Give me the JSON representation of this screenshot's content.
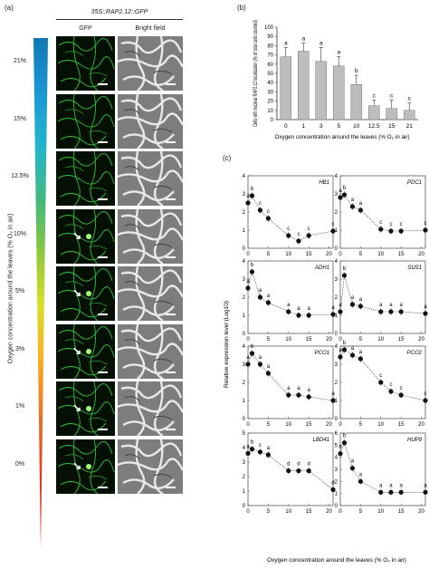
{
  "panels": {
    "a": "(a)",
    "b": "(b)",
    "c": "(c)"
  },
  "panel_a": {
    "construct": "35S::RAP2.12::GFP",
    "col_gfp": "GFP",
    "col_bf": "Bright field",
    "y_title": "Oxygen concentration around the leaves (% O₂ in air)",
    "levels": [
      "21%",
      "15%",
      "12.5%",
      "10%",
      "5%",
      "3%",
      "1%",
      "0%"
    ],
    "arrows_shown": [
      false,
      false,
      false,
      true,
      true,
      true,
      true,
      true
    ]
  },
  "chart_data": [
    {
      "type": "bar",
      "categories": [
        "0",
        "1",
        "3",
        "5",
        "10",
        "12.5",
        "15",
        "21"
      ],
      "values": [
        68,
        74,
        63,
        58,
        38,
        15,
        12,
        10
      ],
      "errors": [
        10,
        9,
        15,
        10,
        10,
        6,
        9,
        8
      ],
      "letters": [
        "a",
        "a",
        "a",
        "a",
        "b",
        "c",
        "c",
        "c"
      ],
      "ylim": [
        0,
        100
      ],
      "yticks": [
        "0",
        "10",
        "20",
        "30",
        "40",
        "50",
        "60",
        "70",
        "80",
        "90",
        "100"
      ],
      "ylabel": "Cells with nuclear RAP2.12 localization (% of total cells counted)",
      "xlabel": "Oxygen concentration around the leaves (% O₂ in air)",
      "bar_color": "#bdbdbd"
    },
    {
      "type": "line",
      "shared_xlabel": "Oxygen concentration around the leaves (% O₂ in air)",
      "shared_ylabel": "Relative expression level (Log10)",
      "xticks": [
        "0",
        "5",
        "10",
        "15",
        "20"
      ],
      "xlim": [
        0,
        21
      ],
      "x": [
        0,
        1,
        3,
        5,
        10,
        12.5,
        15,
        21
      ],
      "subplots": [
        {
          "gene": "HB1",
          "ylim": [
            0,
            4
          ],
          "yticks": [
            "0",
            "1",
            "2",
            "3",
            "4"
          ],
          "y": [
            2.5,
            2.9,
            2.1,
            1.65,
            0.7,
            0.4,
            0.7,
            0.95
          ],
          "letters": [
            "a",
            "b",
            "c",
            "c",
            "c",
            "c",
            "c",
            "c"
          ]
        },
        {
          "gene": "PDC1",
          "ylim": [
            0,
            4
          ],
          "yticks": [
            "0",
            "1",
            "2",
            "3",
            "4"
          ],
          "y": [
            2.8,
            2.95,
            2.3,
            2.1,
            1.05,
            0.95,
            0.95,
            1.0
          ],
          "letters": [
            "a",
            "b",
            "a",
            "a",
            "c",
            "c",
            "c",
            "c"
          ]
        },
        {
          "gene": "ADH1",
          "ylim": [
            0,
            4
          ],
          "yticks": [
            "0",
            "1",
            "2",
            "3",
            "4"
          ],
          "y": [
            2.5,
            3.4,
            2.0,
            1.7,
            1.2,
            1.0,
            1.0,
            1.05
          ],
          "letters": [
            "a",
            "b",
            "a",
            "a",
            "a",
            "a",
            "a",
            "a"
          ]
        },
        {
          "gene": "SUS1",
          "ylim": [
            0,
            4
          ],
          "yticks": [
            "0",
            "1",
            "2",
            "3",
            "4"
          ],
          "y": [
            1.2,
            3.2,
            1.6,
            1.5,
            1.2,
            1.2,
            1.2,
            1.1
          ],
          "letters": [
            "a",
            "b",
            "a",
            "a",
            "a",
            "a",
            "a",
            "a"
          ]
        },
        {
          "gene": "PCO1",
          "ylim": [
            0,
            4
          ],
          "yticks": [
            "0",
            "1",
            "2",
            "3",
            "4"
          ],
          "y": [
            3.0,
            3.6,
            3.0,
            2.5,
            1.3,
            1.3,
            1.2,
            1.0
          ],
          "letters": [
            "a",
            "b",
            "a",
            "a",
            "a",
            "a",
            "a",
            "a"
          ]
        },
        {
          "gene": "PCO2",
          "ylim": [
            0,
            4
          ],
          "yticks": [
            "0",
            "1",
            "2",
            "3",
            "4"
          ],
          "y": [
            3.4,
            3.8,
            3.5,
            3.3,
            2.0,
            1.5,
            1.3,
            1.0
          ],
          "letters": [
            "a",
            "b",
            "a",
            "a",
            "c",
            "c",
            "c",
            "c"
          ]
        },
        {
          "gene": "LBD41",
          "ylim": [
            0,
            5
          ],
          "yticks": [
            "0",
            "1",
            "2",
            "3",
            "4",
            "5"
          ],
          "y": [
            3.6,
            3.9,
            3.7,
            3.5,
            2.4,
            2.4,
            2.4,
            1.1
          ],
          "letters": [
            "a",
            "b",
            "c",
            "a",
            "d",
            "d",
            "d",
            "d"
          ]
        },
        {
          "gene": "HUP9",
          "ylim": [
            0,
            6
          ],
          "yticks": [
            "0",
            "1",
            "2",
            "3",
            "4",
            "5",
            "6"
          ],
          "y": [
            4.3,
            5.2,
            3.1,
            2.0,
            1.1,
            1.1,
            1.1,
            1.1
          ],
          "letters": [
            "a",
            "b",
            "a",
            "a",
            "a",
            "a",
            "a",
            "a"
          ]
        }
      ]
    }
  ]
}
